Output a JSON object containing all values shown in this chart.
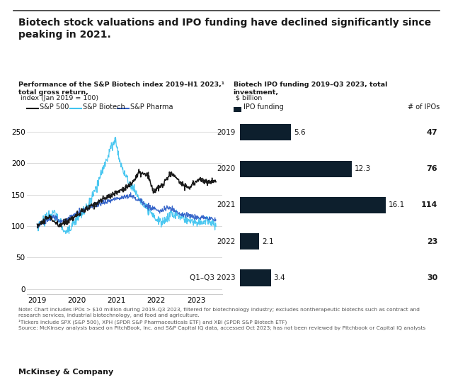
{
  "title": "Biotech stock valuations and IPO funding have declined significantly since\npeaking in 2021.",
  "left_subtitle_bold": "Performance of the S&P Biotech index 2019–H1 2023,¹",
  "left_subtitle_bold2": "total gross return,",
  "left_subtitle_normal": " index (Jan 2019 = 100)",
  "right_subtitle_bold": "Biotech IPO funding 2019–Q3 2023, total",
  "right_subtitle_bold2": "investment,",
  "right_subtitle_normal": " $ billion",
  "legend_colors": [
    "#1a1a1a",
    "#40c4f0",
    "#3060c8"
  ],
  "legend_labels": [
    "S&P 500",
    "S&P Biotech",
    "S&P Pharma"
  ],
  "bar_label": "IPO funding",
  "right_axis_label": "# of IPOs",
  "bar_categories": [
    "2019",
    "2020",
    "2021",
    "2022",
    "Q1–Q3 2023"
  ],
  "bar_values": [
    5.6,
    12.3,
    16.1,
    2.1,
    3.4
  ],
  "bar_value_labels": [
    "5.6",
    "12.3",
    "16.1",
    "2.1",
    "3.4"
  ],
  "ipo_counts": [
    "47",
    "76",
    "114",
    "23",
    "30"
  ],
  "bar_color": "#0d1f2d",
  "yticks_left": [
    0,
    50,
    100,
    150,
    200,
    250
  ],
  "ylim_left": [
    -8,
    275
  ],
  "xlim_left": [
    2018.75,
    2023.65
  ],
  "note_text": "Note: Chart includes IPOs > $10 million during 2019–Q3 2023, filtered for biotechnology industry; excludes nontherapeutic biotechs such as contract and\nresearch services, industrial biotechnology, and food and agriculture.\n¹Tickers include SPX (S&P 500), XPH (SPDR S&P Pharmaceuticals ETF) and XBI (SPDR S&P Biotech ETF)\nSource: McKinsey analysis based on PitchBook, Inc. and S&P Capital IQ data, accessed Oct 2023; has not been reviewed by Pitchbook or Capital IQ analysts",
  "footer": "McKinsey & Company",
  "bg_color": "#ffffff",
  "text_color": "#1a1a1a",
  "grid_color": "#cccccc"
}
